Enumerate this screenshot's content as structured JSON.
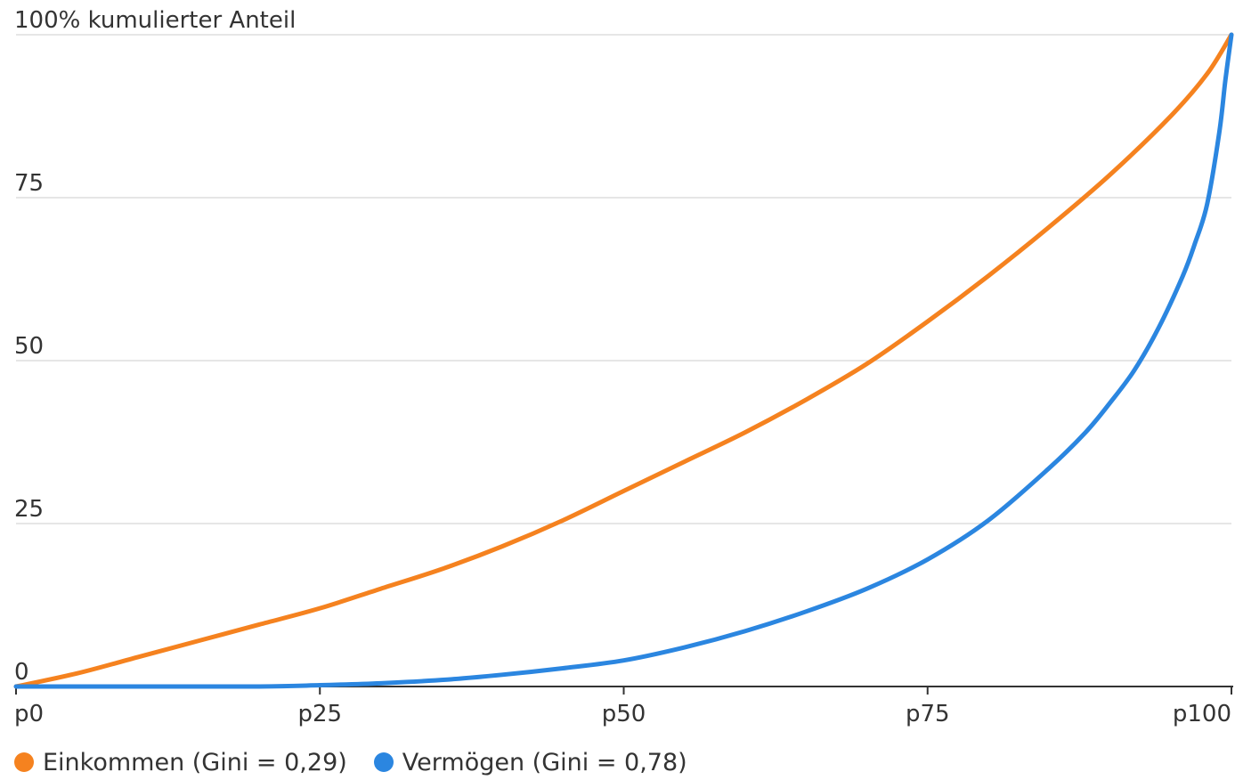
{
  "chart_data": {
    "type": "line",
    "title": "",
    "ylabel": "100% kumulierter Anteil",
    "xlabel": "",
    "xlim": [
      0,
      100
    ],
    "ylim": [
      0,
      100
    ],
    "yticks": [
      {
        "value": 0,
        "label": "0"
      },
      {
        "value": 25,
        "label": "25"
      },
      {
        "value": 50,
        "label": "50"
      },
      {
        "value": 75,
        "label": "75"
      }
    ],
    "xticks": [
      {
        "value": 0,
        "label": "p0"
      },
      {
        "value": 25,
        "label": "p25"
      },
      {
        "value": 50,
        "label": "p50"
      },
      {
        "value": 75,
        "label": "p75"
      },
      {
        "value": 100,
        "label": "p100"
      }
    ],
    "grid": true,
    "legend_position": "bottom-left",
    "series": [
      {
        "name": "Einkommen (Gini = 0,29)",
        "color": "#f5821f",
        "x": [
          0,
          5,
          10,
          15,
          20,
          25,
          30,
          35,
          40,
          45,
          50,
          55,
          60,
          65,
          70,
          75,
          80,
          85,
          90,
          95,
          98,
          100
        ],
        "y": [
          0,
          2,
          4.5,
          7,
          9.5,
          12,
          15,
          18,
          21.5,
          25.5,
          30,
          34.5,
          39,
          44,
          49.5,
          56,
          63,
          70.5,
          78.5,
          87.5,
          94,
          100
        ]
      },
      {
        "name": "Vermögen (Gini = 0,78)",
        "color": "#2b86e0",
        "x": [
          0,
          10,
          20,
          25,
          30,
          35,
          40,
          45,
          50,
          55,
          60,
          65,
          70,
          75,
          80,
          85,
          88,
          90,
          92,
          94,
          96,
          97,
          98,
          99,
          99.5,
          100
        ],
        "y": [
          0,
          0,
          0,
          0.2,
          0.5,
          1,
          1.8,
          2.8,
          4,
          6,
          8.5,
          11.5,
          15,
          19.5,
          25.5,
          33.5,
          39,
          43.5,
          48.5,
          55,
          63,
          68,
          74,
          85,
          93,
          100
        ]
      }
    ]
  }
}
